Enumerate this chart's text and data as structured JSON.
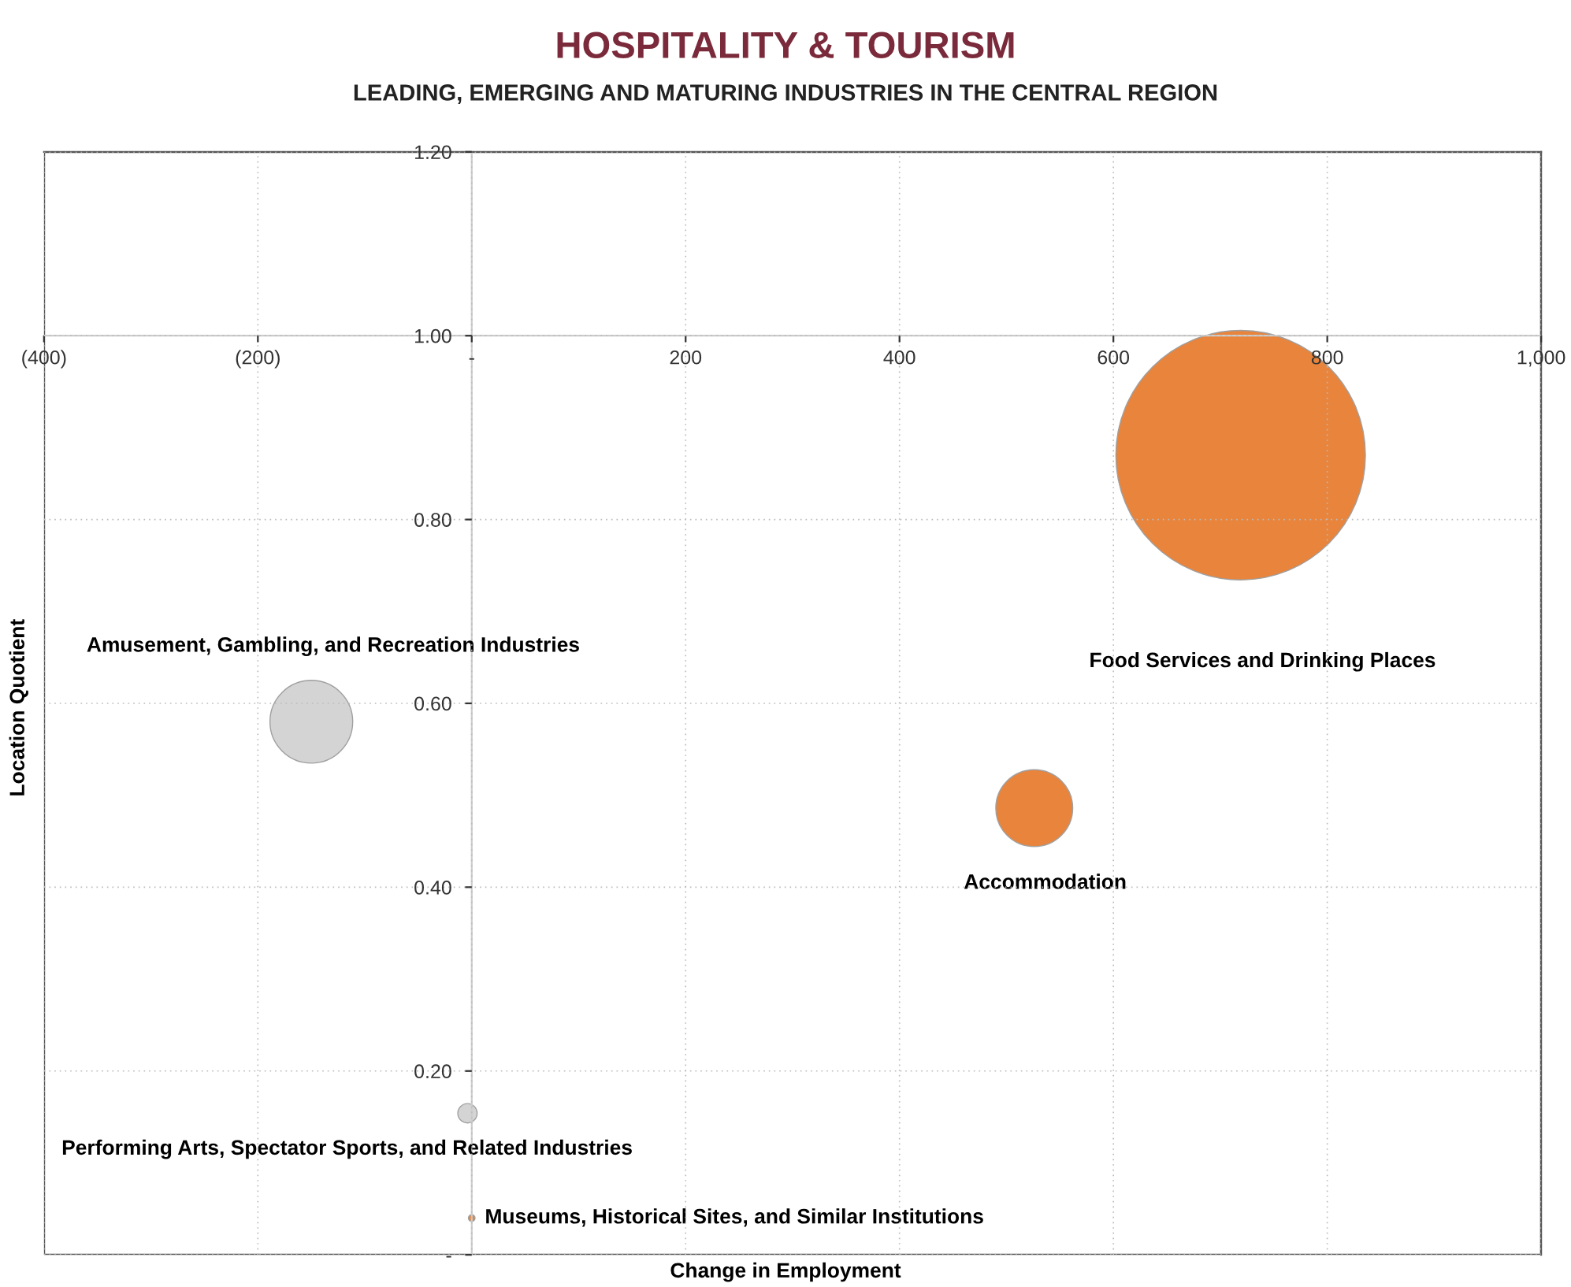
{
  "chart_data": {
    "type": "bubble",
    "title": "HOSPITALITY & TOURISM",
    "subtitle": "LEADING, EMERGING AND MATURING INDUSTRIES IN THE CENTRAL REGION",
    "xlabel": "Change in Employment",
    "ylabel": "Location Quotient",
    "x": [
      719,
      526,
      -150,
      -4,
      0
    ],
    "values": [
      0.87,
      0.486,
      0.58,
      0.154,
      0.04
    ],
    "sizes": [
      1,
      0.095,
      0.11,
      0.006,
      0.0007
    ],
    "colors": [
      "#e8843c",
      "#e8843c",
      "#d4d4d4",
      "#d4d4d4",
      "#e8843c"
    ],
    "annotations": [
      "Food Services and Drinking Places",
      "Accommodation",
      "Amusement, Gambling, and Recreation Industries",
      "Performing Arts, Spectator Sports, and Related Industries",
      "Museums, Historical Sites, and Similar Institutions"
    ],
    "xlim": [
      -400,
      1000
    ],
    "ylim": [
      0,
      1.2
    ],
    "xticks": [
      {
        "value": -400,
        "label": "(400)"
      },
      {
        "value": -200,
        "label": "(200)"
      },
      {
        "value": 0,
        "label": "-"
      },
      200,
      400,
      600,
      800,
      {
        "value": 1000,
        "label": "1,000"
      }
    ],
    "yticks": [
      {
        "value": 0,
        "label": "-"
      },
      {
        "value": 0.2,
        "label": "0.20"
      },
      {
        "value": 0.4,
        "label": "0.40"
      },
      {
        "value": 0.6,
        "label": "0.60"
      },
      {
        "value": 0.8,
        "label": "0.80"
      },
      {
        "value": 1.0,
        "label": "1.00"
      },
      {
        "value": 1.2,
        "label": "1.20"
      }
    ],
    "grid": true
  }
}
